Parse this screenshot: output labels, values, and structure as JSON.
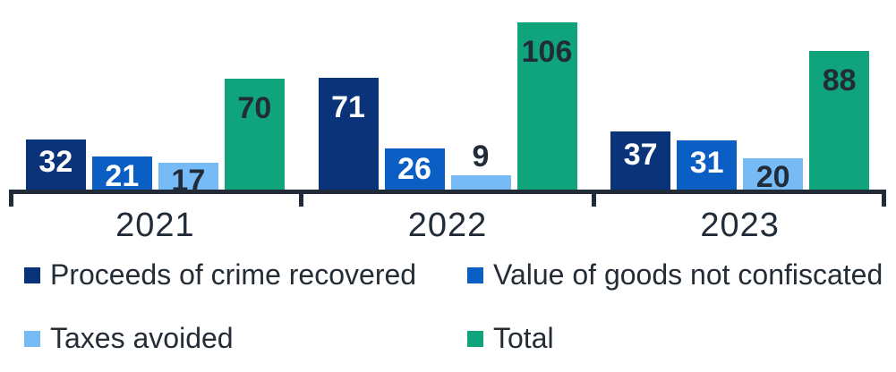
{
  "chart_data": {
    "type": "bar",
    "title": "",
    "categories": [
      "2021",
      "2022",
      "2023"
    ],
    "series": [
      {
        "name": "Proceeds of crime recovered",
        "color": "#0a337a",
        "label_color": "#ffffff",
        "values": [
          32,
          71,
          37
        ]
      },
      {
        "name": "Value of goods not confiscated",
        "color": "#0b5ec3",
        "label_color": "#ffffff",
        "values": [
          21,
          26,
          31
        ]
      },
      {
        "name": "Taxes avoided",
        "color": "#77bbf6",
        "label_color": "#222c38",
        "values": [
          17,
          9,
          20
        ]
      },
      {
        "name": "Total",
        "color": "#10a47c",
        "label_color": "#222c38",
        "values": [
          70,
          106,
          88
        ]
      }
    ],
    "ylim": [
      0,
      120
    ],
    "grid": false,
    "y_axis_visible": false,
    "legend_position": "bottom",
    "value_labels": "inside-top",
    "axis_color": "#222c38",
    "text_color": "#242c35"
  }
}
